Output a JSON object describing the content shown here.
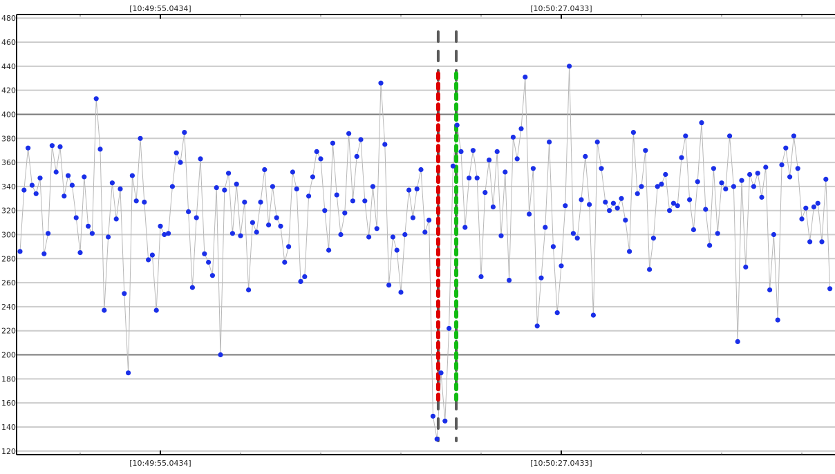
{
  "chart_data": {
    "type": "scatter",
    "title": "",
    "xlabel": "",
    "ylabel": "",
    "ylim": [
      117,
      483
    ],
    "yticks": [
      120,
      140,
      160,
      180,
      200,
      220,
      240,
      260,
      280,
      300,
      320,
      340,
      360,
      380,
      400,
      420,
      440,
      460,
      480
    ],
    "y_tick_labels": [
      "120",
      "140",
      "160",
      "180",
      "200",
      "220",
      "240",
      "260",
      "280",
      "300",
      "320",
      "340",
      "360",
      "380",
      "400",
      "420",
      "440",
      "460",
      "480"
    ],
    "major_gridlines": [
      200,
      400
    ],
    "x_time_labels": [
      {
        "label": "[10:49:55.0434]",
        "index": 35
      },
      {
        "label": "[10:50:27.0433]",
        "index": 135
      }
    ],
    "cursors": [
      {
        "index": 104.3,
        "y_low": 162,
        "y_high": 434,
        "color": "#dd0000"
      },
      {
        "index": 108.8,
        "y_low": 162,
        "y_high": 434,
        "color": "#11bb11"
      }
    ],
    "point_color": "#1a2fe8",
    "line_color": "#b8b8b8",
    "values": [
      286,
      337,
      372,
      341,
      334,
      347,
      284,
      301,
      374,
      352,
      373,
      332,
      349,
      341,
      314,
      285,
      348,
      307,
      301,
      413,
      371,
      237,
      298,
      343,
      313,
      338,
      251,
      185,
      349,
      328,
      380,
      327,
      279,
      283,
      237,
      307,
      300,
      301,
      340,
      368,
      360,
      385,
      319,
      256,
      314,
      363,
      284,
      277,
      266,
      339,
      200,
      337,
      351,
      301,
      342,
      299,
      327,
      254,
      310,
      302,
      327,
      354,
      308,
      340,
      314,
      307,
      277,
      290,
      352,
      338,
      261,
      265,
      332,
      348,
      369,
      363,
      320,
      287,
      376,
      333,
      300,
      318,
      384,
      328,
      365,
      379,
      328,
      298,
      340,
      305,
      426,
      375,
      258,
      298,
      287,
      252,
      300,
      337,
      314,
      338,
      354,
      302,
      312,
      149,
      130,
      185,
      145,
      222,
      357,
      391,
      369,
      306,
      347,
      370,
      347,
      265,
      335,
      362,
      323,
      369,
      299,
      352,
      262,
      381,
      363,
      388,
      431,
      317,
      355,
      224,
      264,
      306,
      377,
      290,
      235,
      274,
      324,
      440,
      301,
      297,
      329,
      365,
      325,
      233,
      377,
      355,
      327,
      320,
      326,
      322,
      330,
      312,
      286,
      385,
      334,
      340,
      370,
      271,
      297,
      340,
      342,
      350,
      320,
      326,
      324,
      364,
      382,
      329,
      304,
      344,
      393,
      321,
      291,
      355,
      301,
      343,
      338,
      382,
      340,
      211,
      345,
      273,
      350,
      340,
      351,
      331,
      356,
      254,
      300,
      229,
      358,
      372,
      348,
      382,
      355,
      313,
      322,
      294,
      323,
      326,
      294,
      346,
      255
    ]
  }
}
